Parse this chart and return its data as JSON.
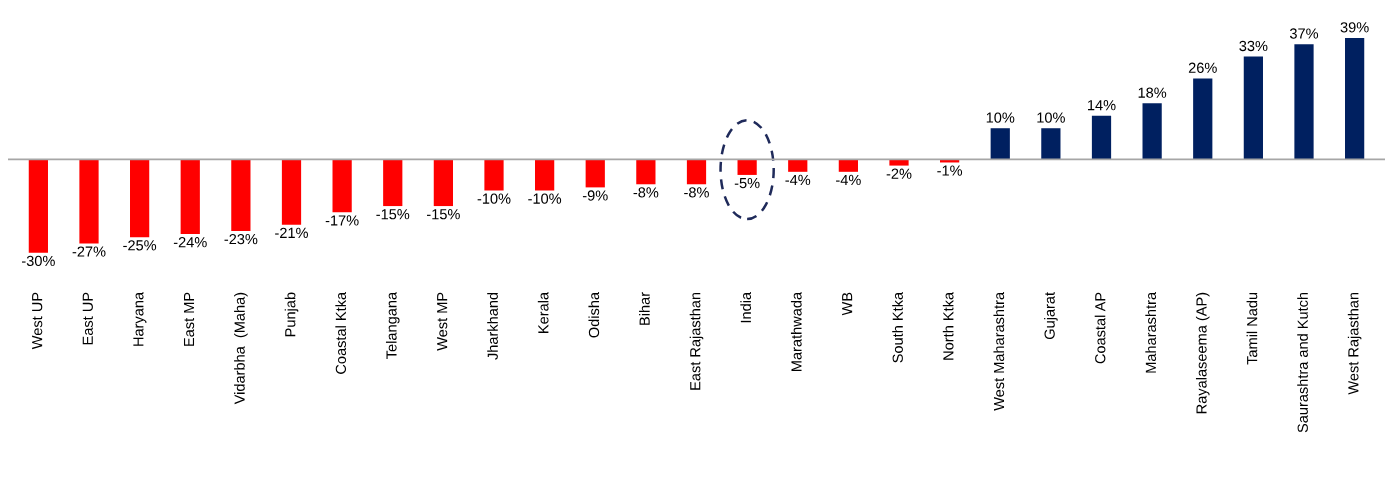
{
  "chart_data": {
    "type": "bar",
    "categories": [
      "West UP",
      "East UP",
      "Haryana",
      "East MP",
      "Vidarbha  (Maha)",
      "Punjab",
      "Coastal Ktka",
      "Telangana",
      "West MP",
      "Jharkhand",
      "Kerala",
      "Odisha",
      "Bihar",
      "East Rajasthan",
      "India",
      "Marathwada",
      "WB",
      "South Ktka",
      "North Ktka",
      "West Maharashtra",
      "Gujarat",
      "Coastal AP",
      "Maharashtra",
      "Rayalaseema (AP)",
      "Tamil Nadu",
      "Saurashtra and Kutch",
      "West Rajasthan"
    ],
    "values": [
      -30,
      -27,
      -25,
      -24,
      -23,
      -21,
      -17,
      -15,
      -15,
      -10,
      -10,
      -9,
      -8,
      -8,
      -5,
      -4,
      -4,
      -2,
      -1,
      10,
      10,
      14,
      18,
      26,
      33,
      37,
      39
    ],
    "colors": [
      "#ff0000",
      "#ff0000",
      "#ff0000",
      "#ff0000",
      "#ff0000",
      "#ff0000",
      "#ff0000",
      "#ff0000",
      "#ff0000",
      "#ff0000",
      "#ff0000",
      "#ff0000",
      "#ff0000",
      "#ff0000",
      "#ff0000",
      "#ff0000",
      "#ff0000",
      "#ff0000",
      "#ff0000",
      "#002060",
      "#002060",
      "#002060",
      "#002060",
      "#002060",
      "#002060",
      "#002060",
      "#002060"
    ],
    "value_labels": [
      "-30%",
      "-27%",
      "-25%",
      "-24%",
      "-23%",
      "-21%",
      "-17%",
      "-15%",
      "-15%",
      "-10%",
      "-10%",
      "-9%",
      "-8%",
      "-8%",
      "-5%",
      "-4%",
      "-4%",
      "-2%",
      "-1%",
      "10%",
      "10%",
      "14%",
      "18%",
      "26%",
      "33%",
      "37%",
      "39%"
    ],
    "grid": false,
    "legend": false
  }
}
